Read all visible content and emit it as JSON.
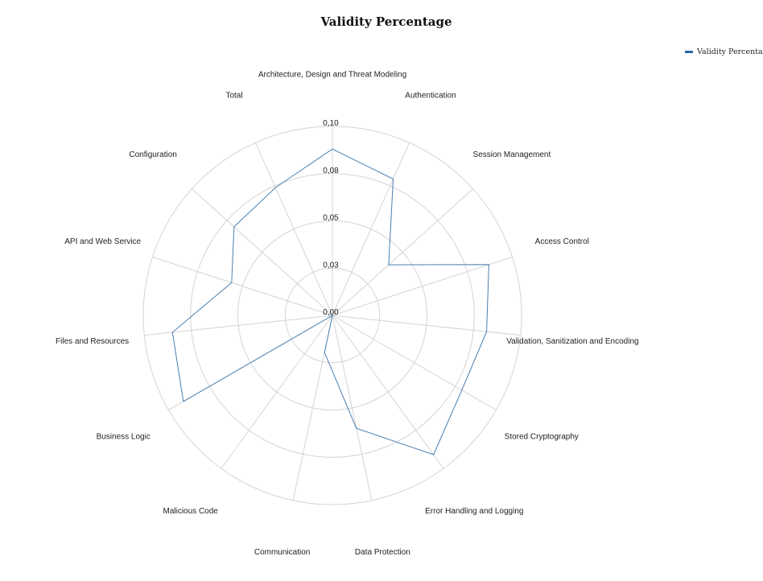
{
  "chart_data": {
    "type": "radar",
    "title": "Validity Percentage",
    "categories": [
      "Architecture, Design and Threat Modeling",
      "Authentication",
      "Session Management",
      "Access Control",
      "Validation, Sanitization and Encoding",
      "Stored Cryptography",
      "Error Handling and Logging",
      "Data Protection",
      "Communication",
      "Malicious Code",
      "Business Logic",
      "Files and Resources",
      "API and Web Service",
      "Configuration",
      "Total"
    ],
    "series": [
      {
        "name": "Validity Percentage",
        "color": "#4a7fb0",
        "values": [
          0.088,
          0.079,
          0.04,
          0.087,
          0.082,
          0.079,
          0.091,
          0.061,
          0.02,
          0.0,
          0.091,
          0.085,
          0.056,
          0.07,
          0.074
        ]
      }
    ],
    "r_range": [
      0,
      0.1
    ],
    "ticks": [
      0.0,
      0.025,
      0.05,
      0.075,
      0.1
    ],
    "tick_labels": [
      "0,00",
      "0,03",
      "0,05",
      "0,08",
      "0,10"
    ],
    "grid": true,
    "legend_position": "top-right",
    "legend_color": "#2b63a8"
  }
}
